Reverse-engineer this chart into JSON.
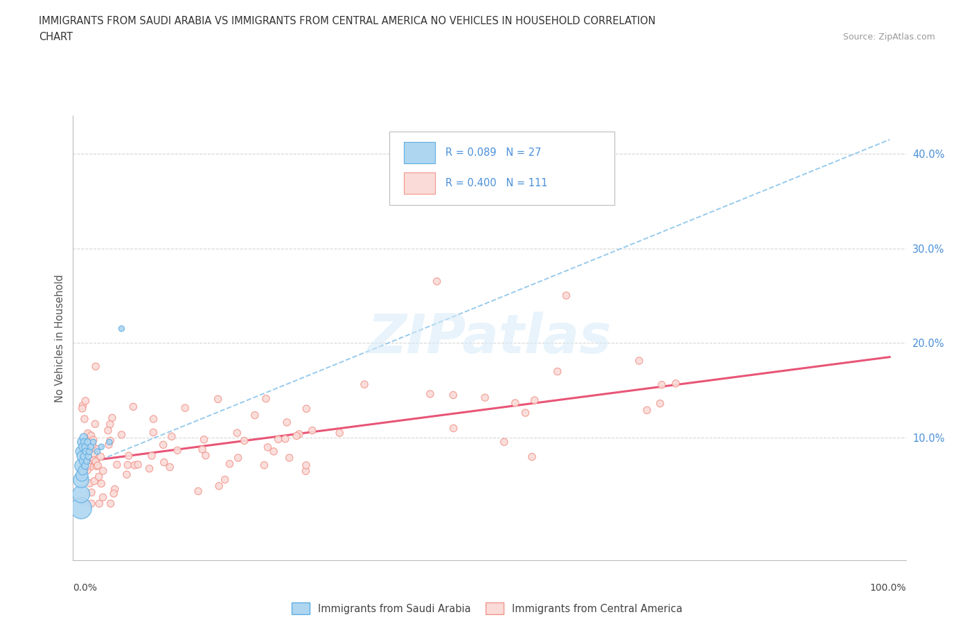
{
  "title_line1": "IMMIGRANTS FROM SAUDI ARABIA VS IMMIGRANTS FROM CENTRAL AMERICA NO VEHICLES IN HOUSEHOLD CORRELATION",
  "title_line2": "CHART",
  "source_text": "Source: ZipAtlas.com",
  "ylabel": "No Vehicles in Household",
  "ytick_values": [
    0.1,
    0.2,
    0.3,
    0.4
  ],
  "ytick_labels": [
    "10.0%",
    "20.0%",
    "30.0%",
    "40.0%"
  ],
  "legend_saudi_r": "R = 0.089",
  "legend_saudi_n": "N = 27",
  "legend_central_r": "R = 0.400",
  "legend_central_n": "N = 111",
  "watermark": "ZIPatlas",
  "color_saudi_fill": "#AED6F1",
  "color_saudi_edge": "#5DADE2",
  "color_central_fill": "#FADBD8",
  "color_central_edge": "#F1948A",
  "color_trendline_saudi": "#85C1E9",
  "color_trendline_central": "#E74C6F",
  "xlim": [
    -0.01,
    1.02
  ],
  "ylim": [
    -0.03,
    0.44
  ],
  "background_color": "#ffffff",
  "grid_color": "#cccccc",
  "saudi_trendline_x0": 0.0,
  "saudi_trendline_y0": 0.068,
  "saudi_trendline_x1": 1.0,
  "saudi_trendline_y1": 0.415,
  "central_trendline_x0": 0.0,
  "central_trendline_y0": 0.074,
  "central_trendline_x1": 1.0,
  "central_trendline_y1": 0.185
}
